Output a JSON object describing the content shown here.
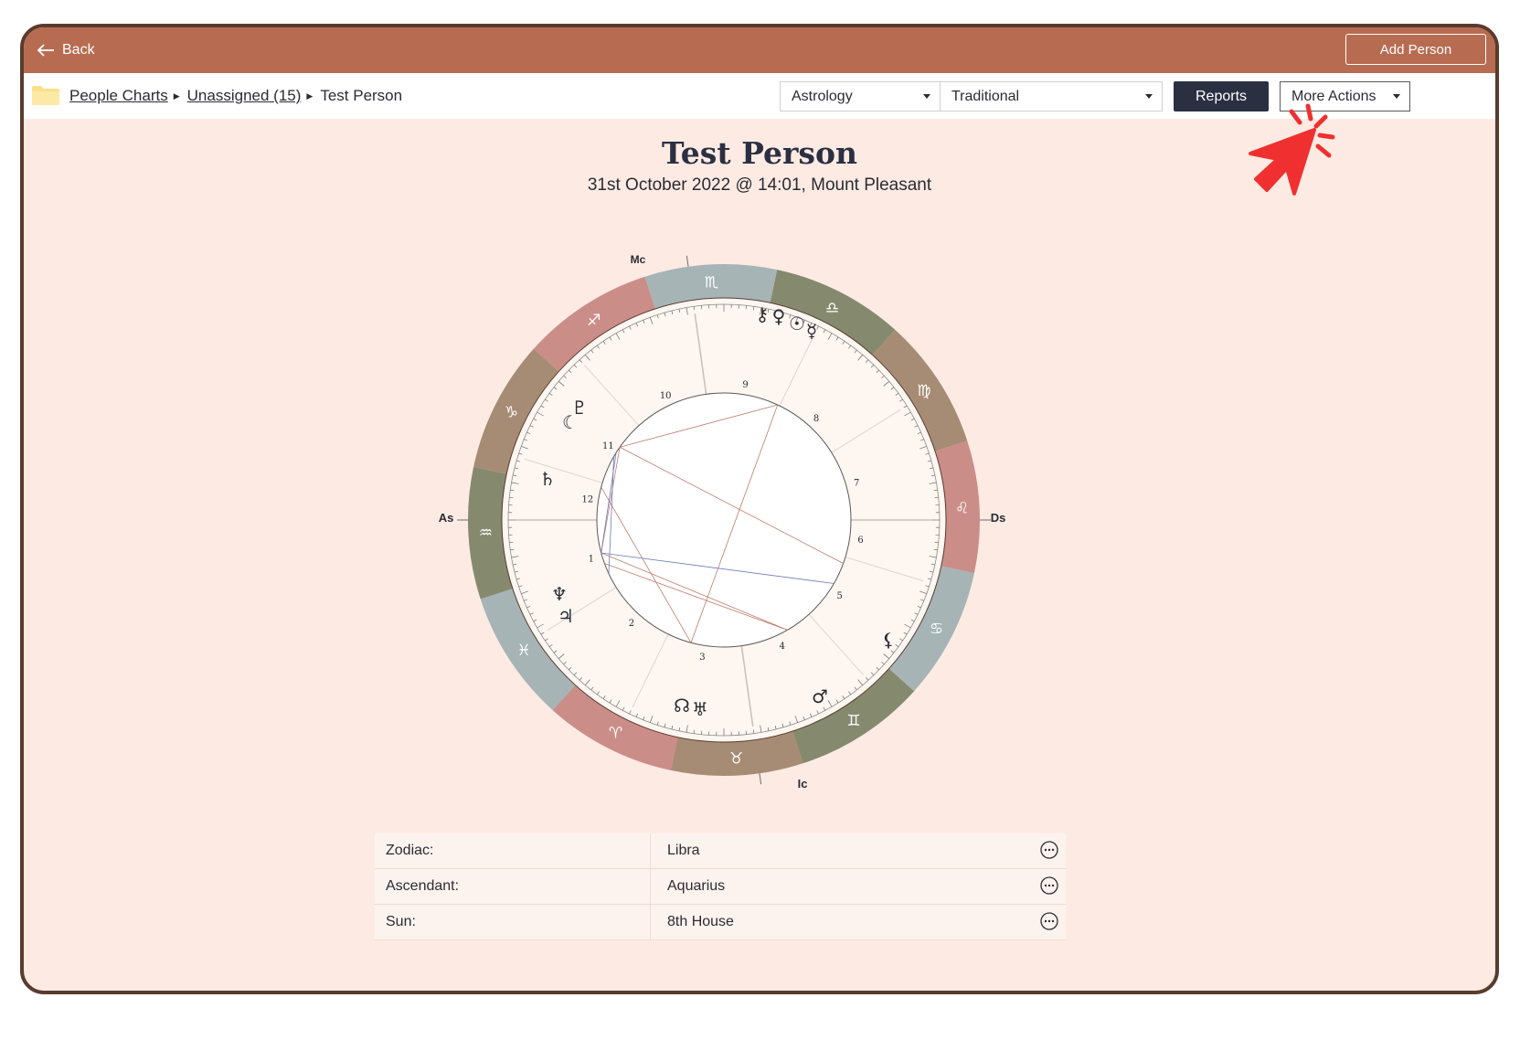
{
  "topbar": {
    "back_label": "Back",
    "add_person_label": "Add Person"
  },
  "breadcrumb": {
    "items": [
      "People Charts",
      "Unassigned (15)"
    ],
    "current": "Test Person"
  },
  "toolbar": {
    "system_value": "Astrology",
    "type_value": "Traditional",
    "reports_label": "Reports",
    "more_actions_label": "More Actions"
  },
  "chart_header": {
    "name": "Test Person",
    "subtitle": "31st October 2022 @ 14:01, Mount Pleasant"
  },
  "wheel": {
    "angle_labels": {
      "mc": "Mc",
      "as": "As",
      "ds": "Ds",
      "ic": "Ic"
    },
    "house_numbers": [
      "1",
      "2",
      "3",
      "4",
      "5",
      "6",
      "7",
      "8",
      "9",
      "10",
      "11",
      "12"
    ]
  },
  "details": {
    "rows": [
      {
        "label": "Zodiac:",
        "value": "Libra"
      },
      {
        "label": "Ascendant:",
        "value": "Aquarius"
      },
      {
        "label": "Sun:",
        "value": "8th House"
      }
    ]
  },
  "colors": {
    "topbar": "#b76c51",
    "background": "#fdebe3",
    "reports_button": "#2b2f42",
    "pointer": "#f03030"
  }
}
